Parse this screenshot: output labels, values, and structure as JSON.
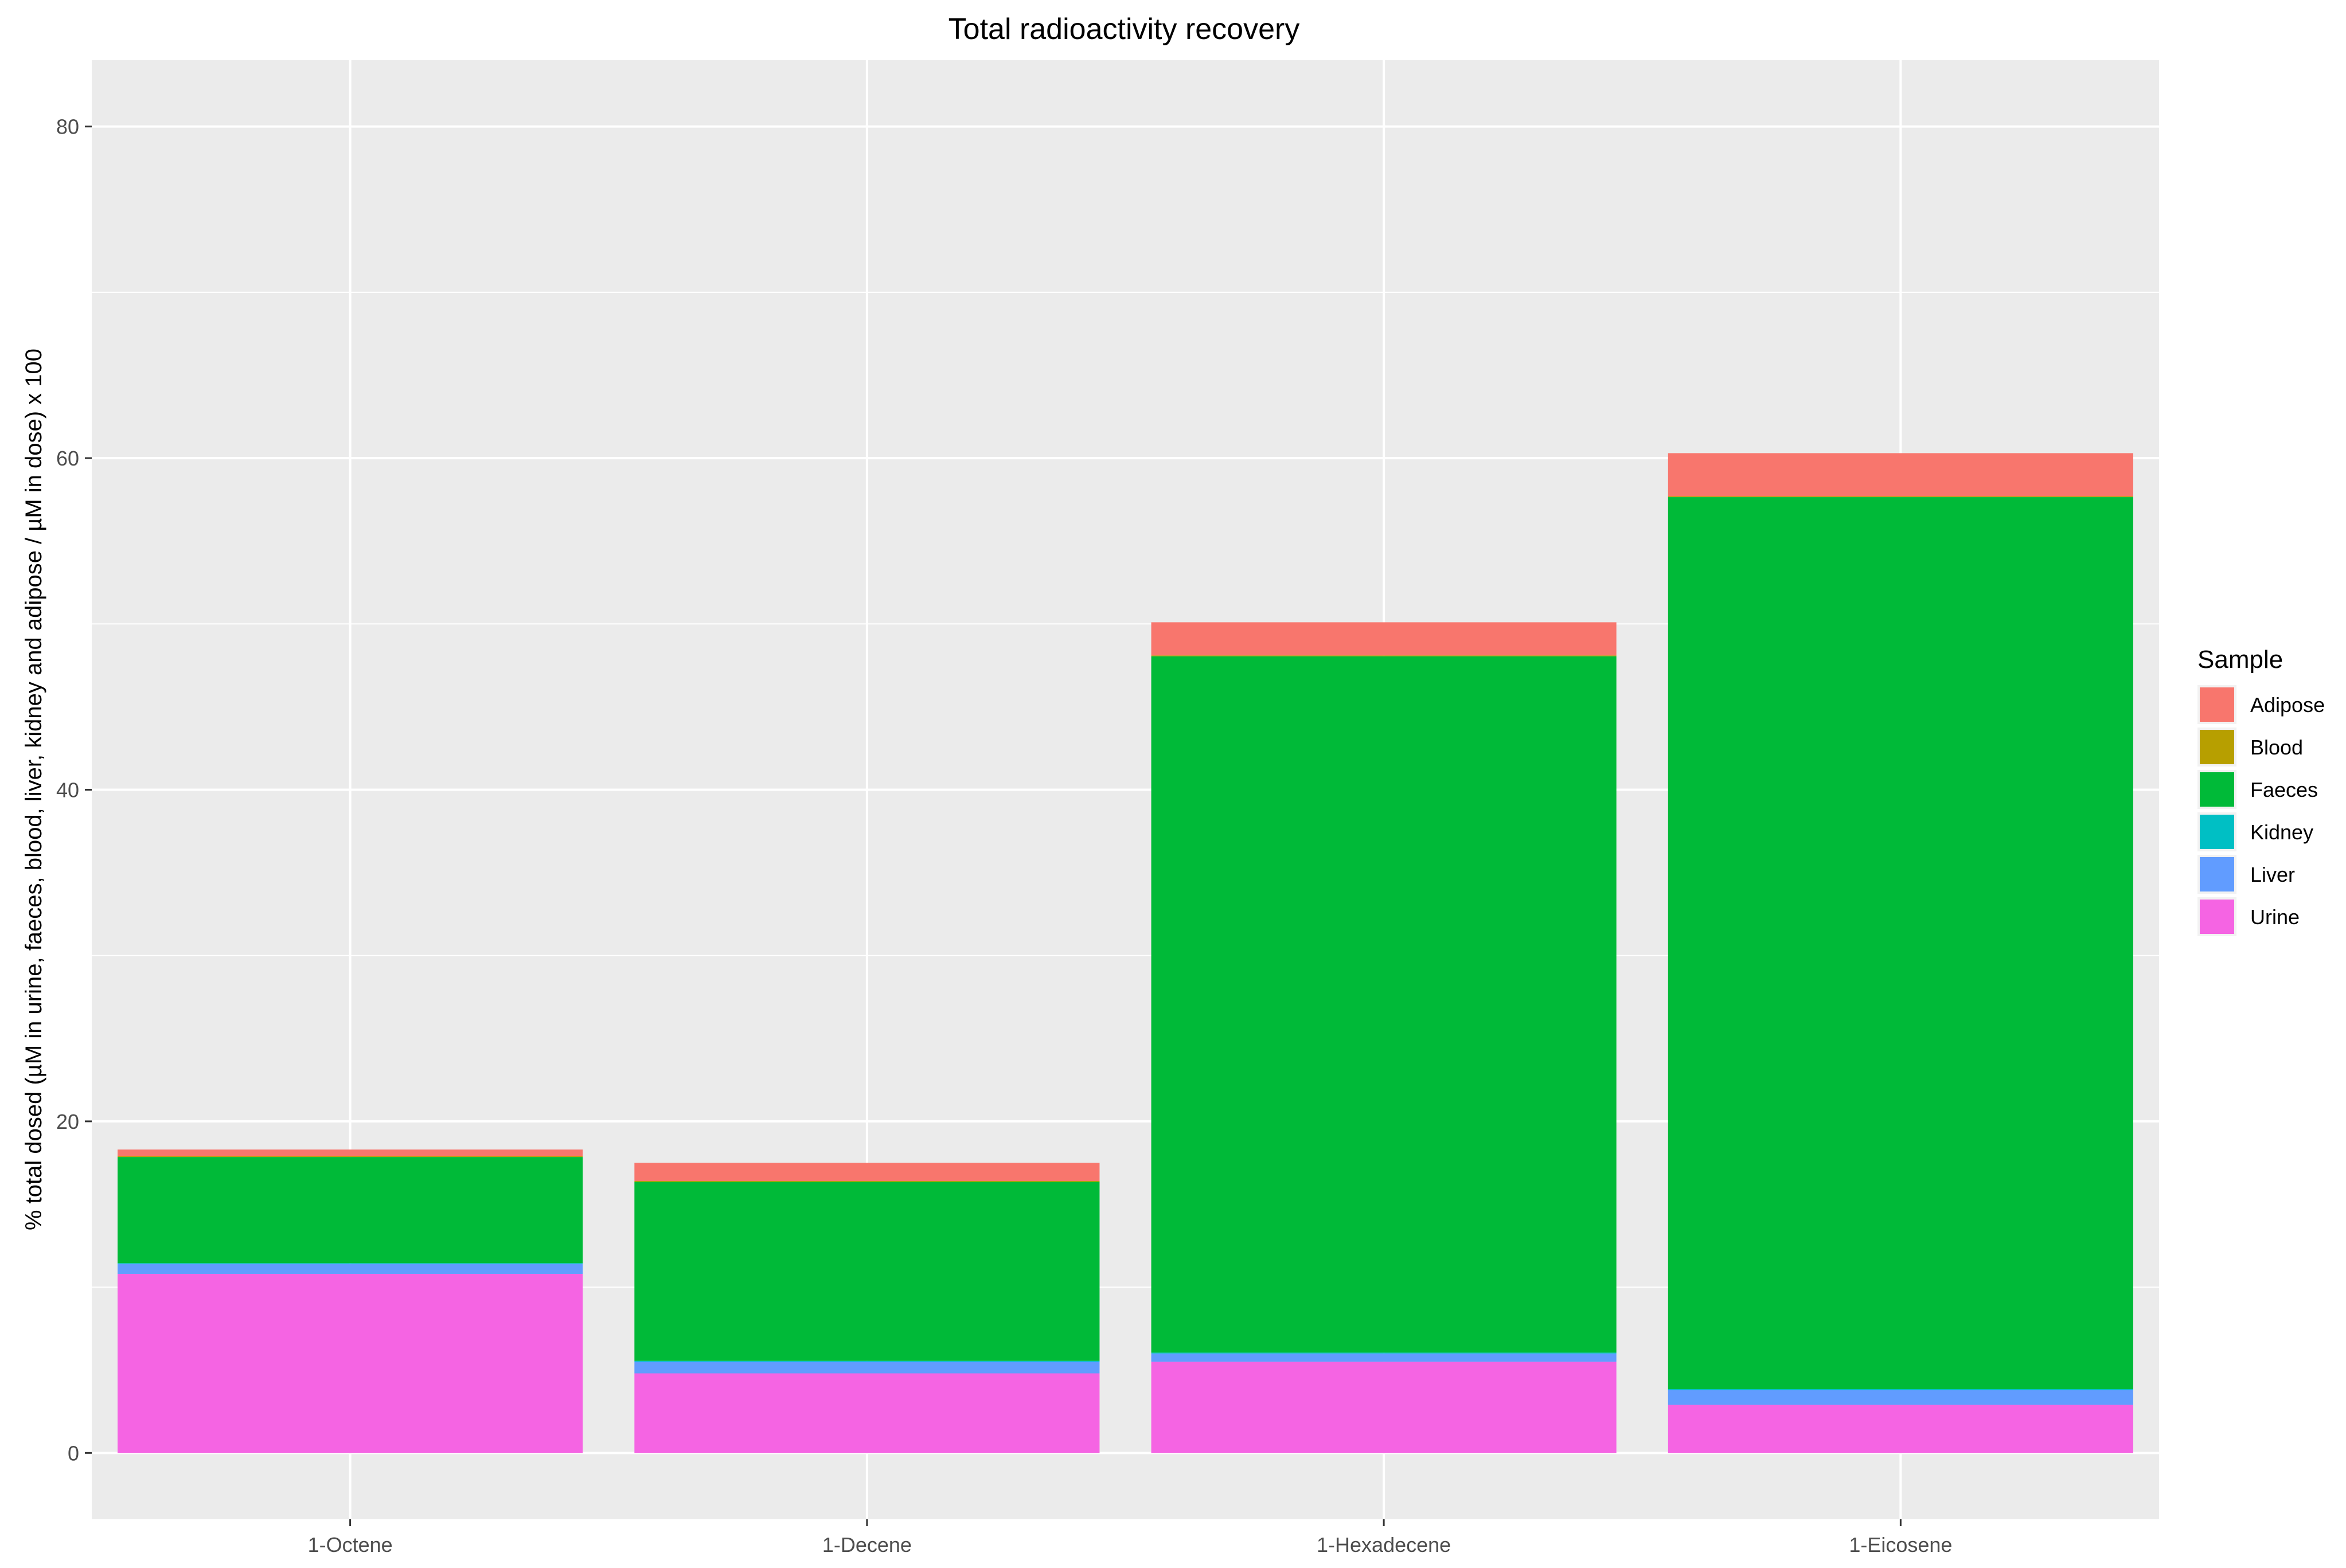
{
  "chart_data": {
    "type": "bar",
    "stacked": true,
    "title": "Total radioactivity recovery",
    "xlabel": "",
    "ylabel": "% total dosed (µM in urine, faeces, blood, liver, kidney and adipose / µM in dose) x 100",
    "ylim": [
      -4,
      84
    ],
    "yticks": [
      0,
      20,
      40,
      60,
      80
    ],
    "grid": true,
    "legend_title": "Sample",
    "legend_position": "right",
    "categories": [
      "1-Octene",
      "1-Decene",
      "1-Hexadecene",
      "1-Eicosene"
    ],
    "series": [
      {
        "name": "Urine",
        "color": "#F564E3",
        "values": [
          10.8,
          4.8,
          5.5,
          2.9
        ]
      },
      {
        "name": "Liver",
        "color": "#619CFF",
        "values": [
          0.6,
          0.7,
          0.5,
          0.9
        ]
      },
      {
        "name": "Kidney",
        "color": "#00BFC4",
        "values": [
          0.05,
          0.05,
          0.05,
          0.05
        ]
      },
      {
        "name": "Faeces",
        "color": "#00BA38",
        "values": [
          6.4,
          10.8,
          42.0,
          53.8
        ]
      },
      {
        "name": "Blood",
        "color": "#B79F00",
        "values": [
          0.05,
          0.05,
          0.05,
          0.05
        ]
      },
      {
        "name": "Adipose",
        "color": "#F8766D",
        "values": [
          0.4,
          1.1,
          2.0,
          2.6
        ]
      }
    ],
    "legend_order": [
      "Adipose",
      "Blood",
      "Faeces",
      "Kidney",
      "Liver",
      "Urine"
    ]
  }
}
